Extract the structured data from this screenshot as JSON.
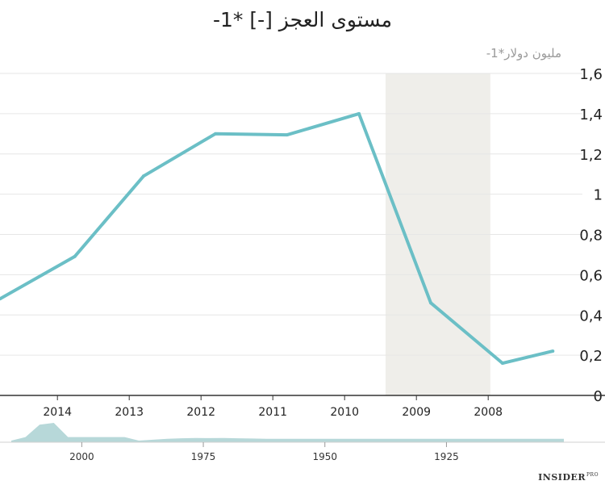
{
  "chart_data": {
    "type": "line",
    "title": "مستوى العجز [-] *1-",
    "ylabel": "مليون دولار*1-",
    "ylim": [
      0,
      1.6
    ],
    "yticks": [
      "0",
      "0,2",
      "0,4",
      "0,6",
      "0,8",
      "1",
      "1,2",
      "1,4",
      "1,6"
    ],
    "ytick_values": [
      0,
      0.2,
      0.4,
      0.6,
      0.8,
      1.0,
      1.2,
      1.4,
      1.6
    ],
    "x_index_range": [
      0,
      8
    ],
    "xtick_labels": [
      "2014",
      "2013",
      "2012",
      "2011",
      "2010",
      "2009",
      "2008"
    ],
    "xtick_positions": [
      0.8,
      1.8,
      2.8,
      3.8,
      4.8,
      5.8,
      6.8
    ],
    "series": [
      {
        "name": "مستوى العجز",
        "color": "#6bbfc6",
        "x": [
          0.0,
          1.04,
          2.0,
          3.0,
          4.0,
          5.0,
          6.0,
          7.0,
          7.7
        ],
        "values": [
          0.48,
          0.69,
          1.09,
          1.3,
          1.295,
          1.4,
          0.46,
          0.16,
          0.22
        ]
      }
    ],
    "shaded_region": {
      "from": 5.37,
      "to": 6.83,
      "color": "#efeeea"
    },
    "overview": {
      "color": "#b7d8d9",
      "tick_labels": [
        "2000",
        "1975",
        "1950",
        "1925"
      ],
      "tick_positions": [
        0.11,
        0.33,
        0.55,
        0.77
      ],
      "values": [
        0.0,
        0.2,
        0.9,
        1.0,
        0.2,
        0.2,
        0.2,
        0.2,
        0.2,
        0.0,
        0.05,
        0.1,
        0.13,
        0.15,
        0.14,
        0.15,
        0.13,
        0.12,
        0.1,
        0.1,
        0.1,
        0.1,
        0.1,
        0.1,
        0.1,
        0.1,
        0.1,
        0.1,
        0.1,
        0.1,
        0.1,
        0.1,
        0.1,
        0.1,
        0.1,
        0.1,
        0.1,
        0.1,
        0.1,
        0.1
      ]
    }
  },
  "brand": {
    "name": "INSIDER",
    "suffix": "PRO"
  }
}
